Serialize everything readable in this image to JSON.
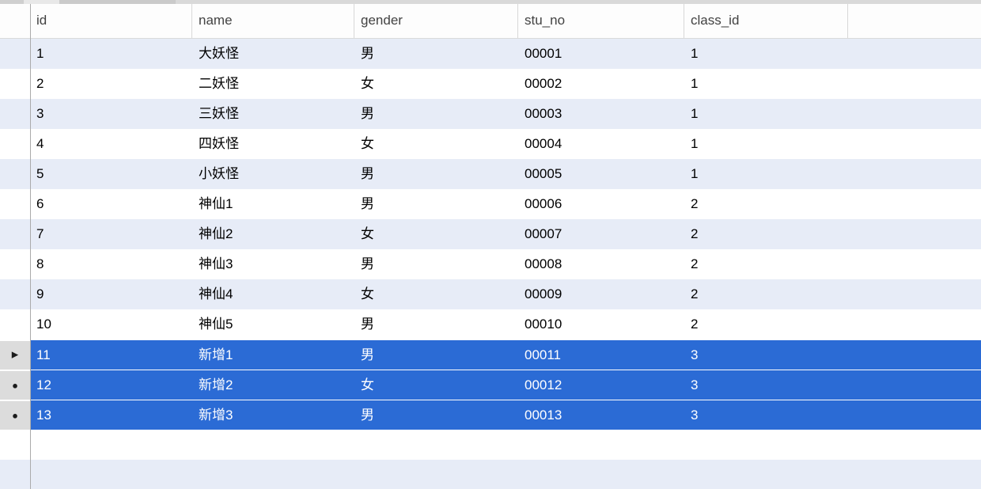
{
  "colors": {
    "selection": "#2b6bd5",
    "row_stripe": "#e7ecf7",
    "gutter_selected": "#dcdcdc",
    "marker": "#1b1b1b"
  },
  "table": {
    "columns": [
      {
        "key": "id",
        "label": "id"
      },
      {
        "key": "name",
        "label": "name"
      },
      {
        "key": "gender",
        "label": "gender"
      },
      {
        "key": "stu_no",
        "label": "stu_no"
      },
      {
        "key": "class_id",
        "label": "class_id"
      }
    ],
    "markers": {
      "current": "▶",
      "modified": "●",
      "none": ""
    },
    "rows": [
      {
        "id": "1",
        "name": "大妖怪",
        "gender": "男",
        "stu_no": "00001",
        "class_id": "1",
        "selected": false,
        "marker": "none"
      },
      {
        "id": "2",
        "name": "二妖怪",
        "gender": "女",
        "stu_no": "00002",
        "class_id": "1",
        "selected": false,
        "marker": "none"
      },
      {
        "id": "3",
        "name": "三妖怪",
        "gender": "男",
        "stu_no": "00003",
        "class_id": "1",
        "selected": false,
        "marker": "none"
      },
      {
        "id": "4",
        "name": "四妖怪",
        "gender": "女",
        "stu_no": "00004",
        "class_id": "1",
        "selected": false,
        "marker": "none"
      },
      {
        "id": "5",
        "name": "小妖怪",
        "gender": "男",
        "stu_no": "00005",
        "class_id": "1",
        "selected": false,
        "marker": "none"
      },
      {
        "id": "6",
        "name": "神仙1",
        "gender": "男",
        "stu_no": "00006",
        "class_id": "2",
        "selected": false,
        "marker": "none"
      },
      {
        "id": "7",
        "name": "神仙2",
        "gender": "女",
        "stu_no": "00007",
        "class_id": "2",
        "selected": false,
        "marker": "none"
      },
      {
        "id": "8",
        "name": "神仙3",
        "gender": "男",
        "stu_no": "00008",
        "class_id": "2",
        "selected": false,
        "marker": "none"
      },
      {
        "id": "9",
        "name": "神仙4",
        "gender": "女",
        "stu_no": "00009",
        "class_id": "2",
        "selected": false,
        "marker": "none"
      },
      {
        "id": "10",
        "name": "神仙5",
        "gender": "男",
        "stu_no": "00010",
        "class_id": "2",
        "selected": false,
        "marker": "none"
      },
      {
        "id": "11",
        "name": "新增1",
        "gender": "男",
        "stu_no": "00011",
        "class_id": "3",
        "selected": true,
        "marker": "current"
      },
      {
        "id": "12",
        "name": "新增2",
        "gender": "女",
        "stu_no": "00012",
        "class_id": "3",
        "selected": true,
        "marker": "modified"
      },
      {
        "id": "13",
        "name": "新增3",
        "gender": "男",
        "stu_no": "00013",
        "class_id": "3",
        "selected": true,
        "marker": "modified"
      }
    ]
  }
}
